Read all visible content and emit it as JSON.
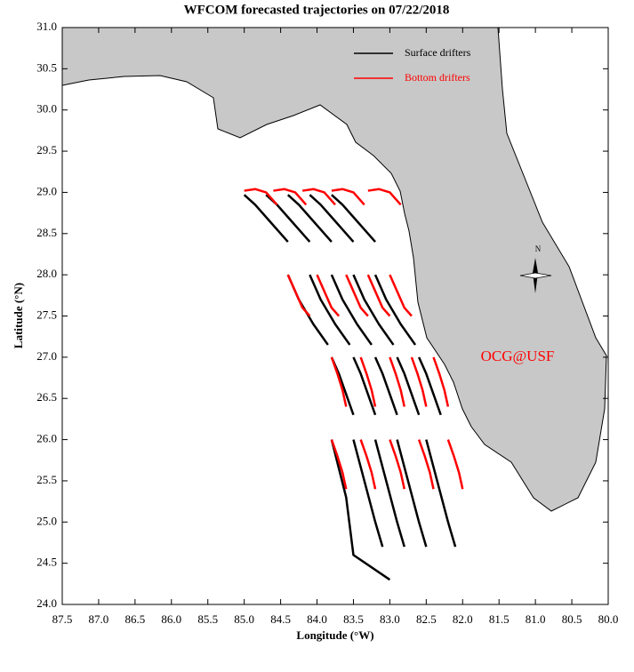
{
  "chart_data": {
    "type": "trajectory-map",
    "title": "WFCOM forecasted trajectories on 07/22/2018",
    "xlabel": "Longitude (°W)",
    "ylabel": "Latitude (°N)",
    "xlim": [
      87.5,
      80.0
    ],
    "ylim": [
      24.0,
      31.0
    ],
    "xticks": [
      87.5,
      {
        "value": 87,
        "label": "87.0"
      },
      86.5,
      {
        "value": 86,
        "label": "86.0"
      },
      85.5,
      {
        "value": 85,
        "label": "85.0"
      },
      84.5,
      {
        "value": 84,
        "label": "84.0"
      },
      83.5,
      {
        "value": 83,
        "label": "83.0"
      },
      82.5,
      {
        "value": 82,
        "label": "82.0"
      },
      81.5,
      {
        "value": 81,
        "label": "81.0"
      },
      80.5,
      {
        "value": 80,
        "label": "80.0"
      }
    ],
    "yticks": [
      {
        "value": 24,
        "label": "24.0"
      },
      24.5,
      {
        "value": 25,
        "label": "25.0"
      },
      25.5,
      {
        "value": 26,
        "label": "26.0"
      },
      26.5,
      {
        "value": 27,
        "label": "27.0"
      },
      27.5,
      {
        "value": 28,
        "label": "28.0"
      },
      28.5,
      {
        "value": 29,
        "label": "29.0"
      },
      29.5,
      {
        "value": 30,
        "label": "30.0"
      },
      30.5,
      {
        "value": 31,
        "label": "31.0"
      }
    ],
    "annotations": [
      "OCG@USF",
      "N"
    ],
    "series": [
      {
        "name": "Surface drifters",
        "color": "black",
        "trajectories": [
          {
            "x": [
              85.0,
              84.85,
              84.65,
              84.4
            ],
            "y": [
              28.97,
              28.85,
              28.65,
              28.4
            ]
          },
          {
            "x": [
              84.7,
              84.55,
              84.35,
              84.1
            ],
            "y": [
              28.97,
              28.85,
              28.65,
              28.4
            ]
          },
          {
            "x": [
              84.4,
              84.25,
              84.05,
              83.8
            ],
            "y": [
              28.97,
              28.85,
              28.65,
              28.4
            ]
          },
          {
            "x": [
              84.1,
              83.95,
              83.75,
              83.5
            ],
            "y": [
              28.97,
              28.85,
              28.65,
              28.4
            ]
          },
          {
            "x": [
              83.8,
              83.65,
              83.45,
              83.2
            ],
            "y": [
              28.97,
              28.85,
              28.65,
              28.4
            ]
          },
          {
            "x": [
              84.4,
              84.25,
              84.05,
              83.85
            ],
            "y": [
              28.0,
              27.7,
              27.4,
              27.15
            ]
          },
          {
            "x": [
              84.1,
              83.95,
              83.75,
              83.55
            ],
            "y": [
              28.0,
              27.7,
              27.4,
              27.15
            ]
          },
          {
            "x": [
              83.8,
              83.65,
              83.45,
              83.25
            ],
            "y": [
              28.0,
              27.7,
              27.4,
              27.15
            ]
          },
          {
            "x": [
              83.5,
              83.35,
              83.15,
              82.95
            ],
            "y": [
              28.0,
              27.7,
              27.4,
              27.15
            ]
          },
          {
            "x": [
              83.2,
              83.05,
              82.85,
              82.65
            ],
            "y": [
              28.0,
              27.7,
              27.4,
              27.15
            ]
          },
          {
            "x": [
              83.8,
              83.7,
              83.6,
              83.5
            ],
            "y": [
              27.0,
              26.8,
              26.55,
              26.3
            ]
          },
          {
            "x": [
              83.5,
              83.4,
              83.3,
              83.2
            ],
            "y": [
              27.0,
              26.8,
              26.55,
              26.3
            ]
          },
          {
            "x": [
              83.2,
              83.1,
              83.0,
              82.9
            ],
            "y": [
              27.0,
              26.8,
              26.55,
              26.3
            ]
          },
          {
            "x": [
              82.9,
              82.8,
              82.7,
              82.6
            ],
            "y": [
              27.0,
              26.8,
              26.55,
              26.3
            ]
          },
          {
            "x": [
              82.6,
              82.5,
              82.4,
              82.3
            ],
            "y": [
              27.0,
              26.8,
              26.55,
              26.3
            ]
          },
          {
            "x": [
              83.8,
              83.6,
              83.5,
              83.0
            ],
            "y": [
              26.0,
              25.3,
              24.6,
              24.3
            ]
          },
          {
            "x": [
              83.5,
              83.35,
              83.2,
              83.1
            ],
            "y": [
              26.0,
              25.5,
              25.0,
              24.7
            ]
          },
          {
            "x": [
              83.2,
              83.05,
              82.9,
              82.8
            ],
            "y": [
              26.0,
              25.5,
              25.0,
              24.7
            ]
          },
          {
            "x": [
              82.9,
              82.75,
              82.6,
              82.5
            ],
            "y": [
              26.0,
              25.5,
              25.0,
              24.7
            ]
          },
          {
            "x": [
              82.5,
              82.35,
              82.2,
              82.1
            ],
            "y": [
              26.0,
              25.5,
              25.0,
              24.7
            ]
          }
        ]
      },
      {
        "name": "Bottom drifters",
        "color": "red",
        "trajectories": [
          {
            "x": [
              85.0,
              84.85,
              84.7,
              84.55
            ],
            "y": [
              29.02,
              29.04,
              29.0,
              28.85
            ]
          },
          {
            "x": [
              84.6,
              84.45,
              84.3,
              84.15
            ],
            "y": [
              29.02,
              29.04,
              29.0,
              28.85
            ]
          },
          {
            "x": [
              84.2,
              84.05,
              83.9,
              83.75
            ],
            "y": [
              29.02,
              29.04,
              29.0,
              28.85
            ]
          },
          {
            "x": [
              83.8,
              83.65,
              83.5,
              83.35
            ],
            "y": [
              29.02,
              29.04,
              29.0,
              28.85
            ]
          },
          {
            "x": [
              83.3,
              83.15,
              83.0,
              82.85
            ],
            "y": [
              29.02,
              29.04,
              29.0,
              28.85
            ]
          },
          {
            "x": [
              84.4,
              84.3,
              84.2,
              84.1
            ],
            "y": [
              28.0,
              27.8,
              27.6,
              27.5
            ]
          },
          {
            "x": [
              84.0,
              83.9,
              83.8,
              83.7
            ],
            "y": [
              28.0,
              27.8,
              27.6,
              27.5
            ]
          },
          {
            "x": [
              83.6,
              83.5,
              83.4,
              83.3
            ],
            "y": [
              28.0,
              27.8,
              27.6,
              27.5
            ]
          },
          {
            "x": [
              83.3,
              83.2,
              83.1,
              83.0
            ],
            "y": [
              28.0,
              27.8,
              27.6,
              27.5
            ]
          },
          {
            "x": [
              83.0,
              82.9,
              82.8,
              82.7
            ],
            "y": [
              28.0,
              27.8,
              27.6,
              27.5
            ]
          },
          {
            "x": [
              83.8,
              83.72,
              83.65,
              83.6
            ],
            "y": [
              27.0,
              26.8,
              26.6,
              26.4
            ]
          },
          {
            "x": [
              83.4,
              83.32,
              83.25,
              83.2
            ],
            "y": [
              27.0,
              26.8,
              26.6,
              26.4
            ]
          },
          {
            "x": [
              83.0,
              82.92,
              82.85,
              82.8
            ],
            "y": [
              27.0,
              26.8,
              26.6,
              26.4
            ]
          },
          {
            "x": [
              82.7,
              82.62,
              82.55,
              82.5
            ],
            "y": [
              27.0,
              26.8,
              26.6,
              26.4
            ]
          },
          {
            "x": [
              82.4,
              82.32,
              82.25,
              82.2
            ],
            "y": [
              27.0,
              26.8,
              26.6,
              26.4
            ]
          },
          {
            "x": [
              83.8,
              83.72,
              83.65,
              83.6
            ],
            "y": [
              26.0,
              25.8,
              25.6,
              25.4
            ]
          },
          {
            "x": [
              83.4,
              83.32,
              83.25,
              83.2
            ],
            "y": [
              26.0,
              25.8,
              25.6,
              25.4
            ]
          },
          {
            "x": [
              83.0,
              82.92,
              82.85,
              82.8
            ],
            "y": [
              26.0,
              25.8,
              25.6,
              25.4
            ]
          },
          {
            "x": [
              82.6,
              82.52,
              82.45,
              82.4
            ],
            "y": [
              26.0,
              25.8,
              25.6,
              25.4
            ]
          },
          {
            "x": [
              82.2,
              82.12,
              82.05,
              82.0
            ],
            "y": [
              26.0,
              25.8,
              25.6,
              25.4
            ]
          }
        ]
      }
    ]
  }
}
